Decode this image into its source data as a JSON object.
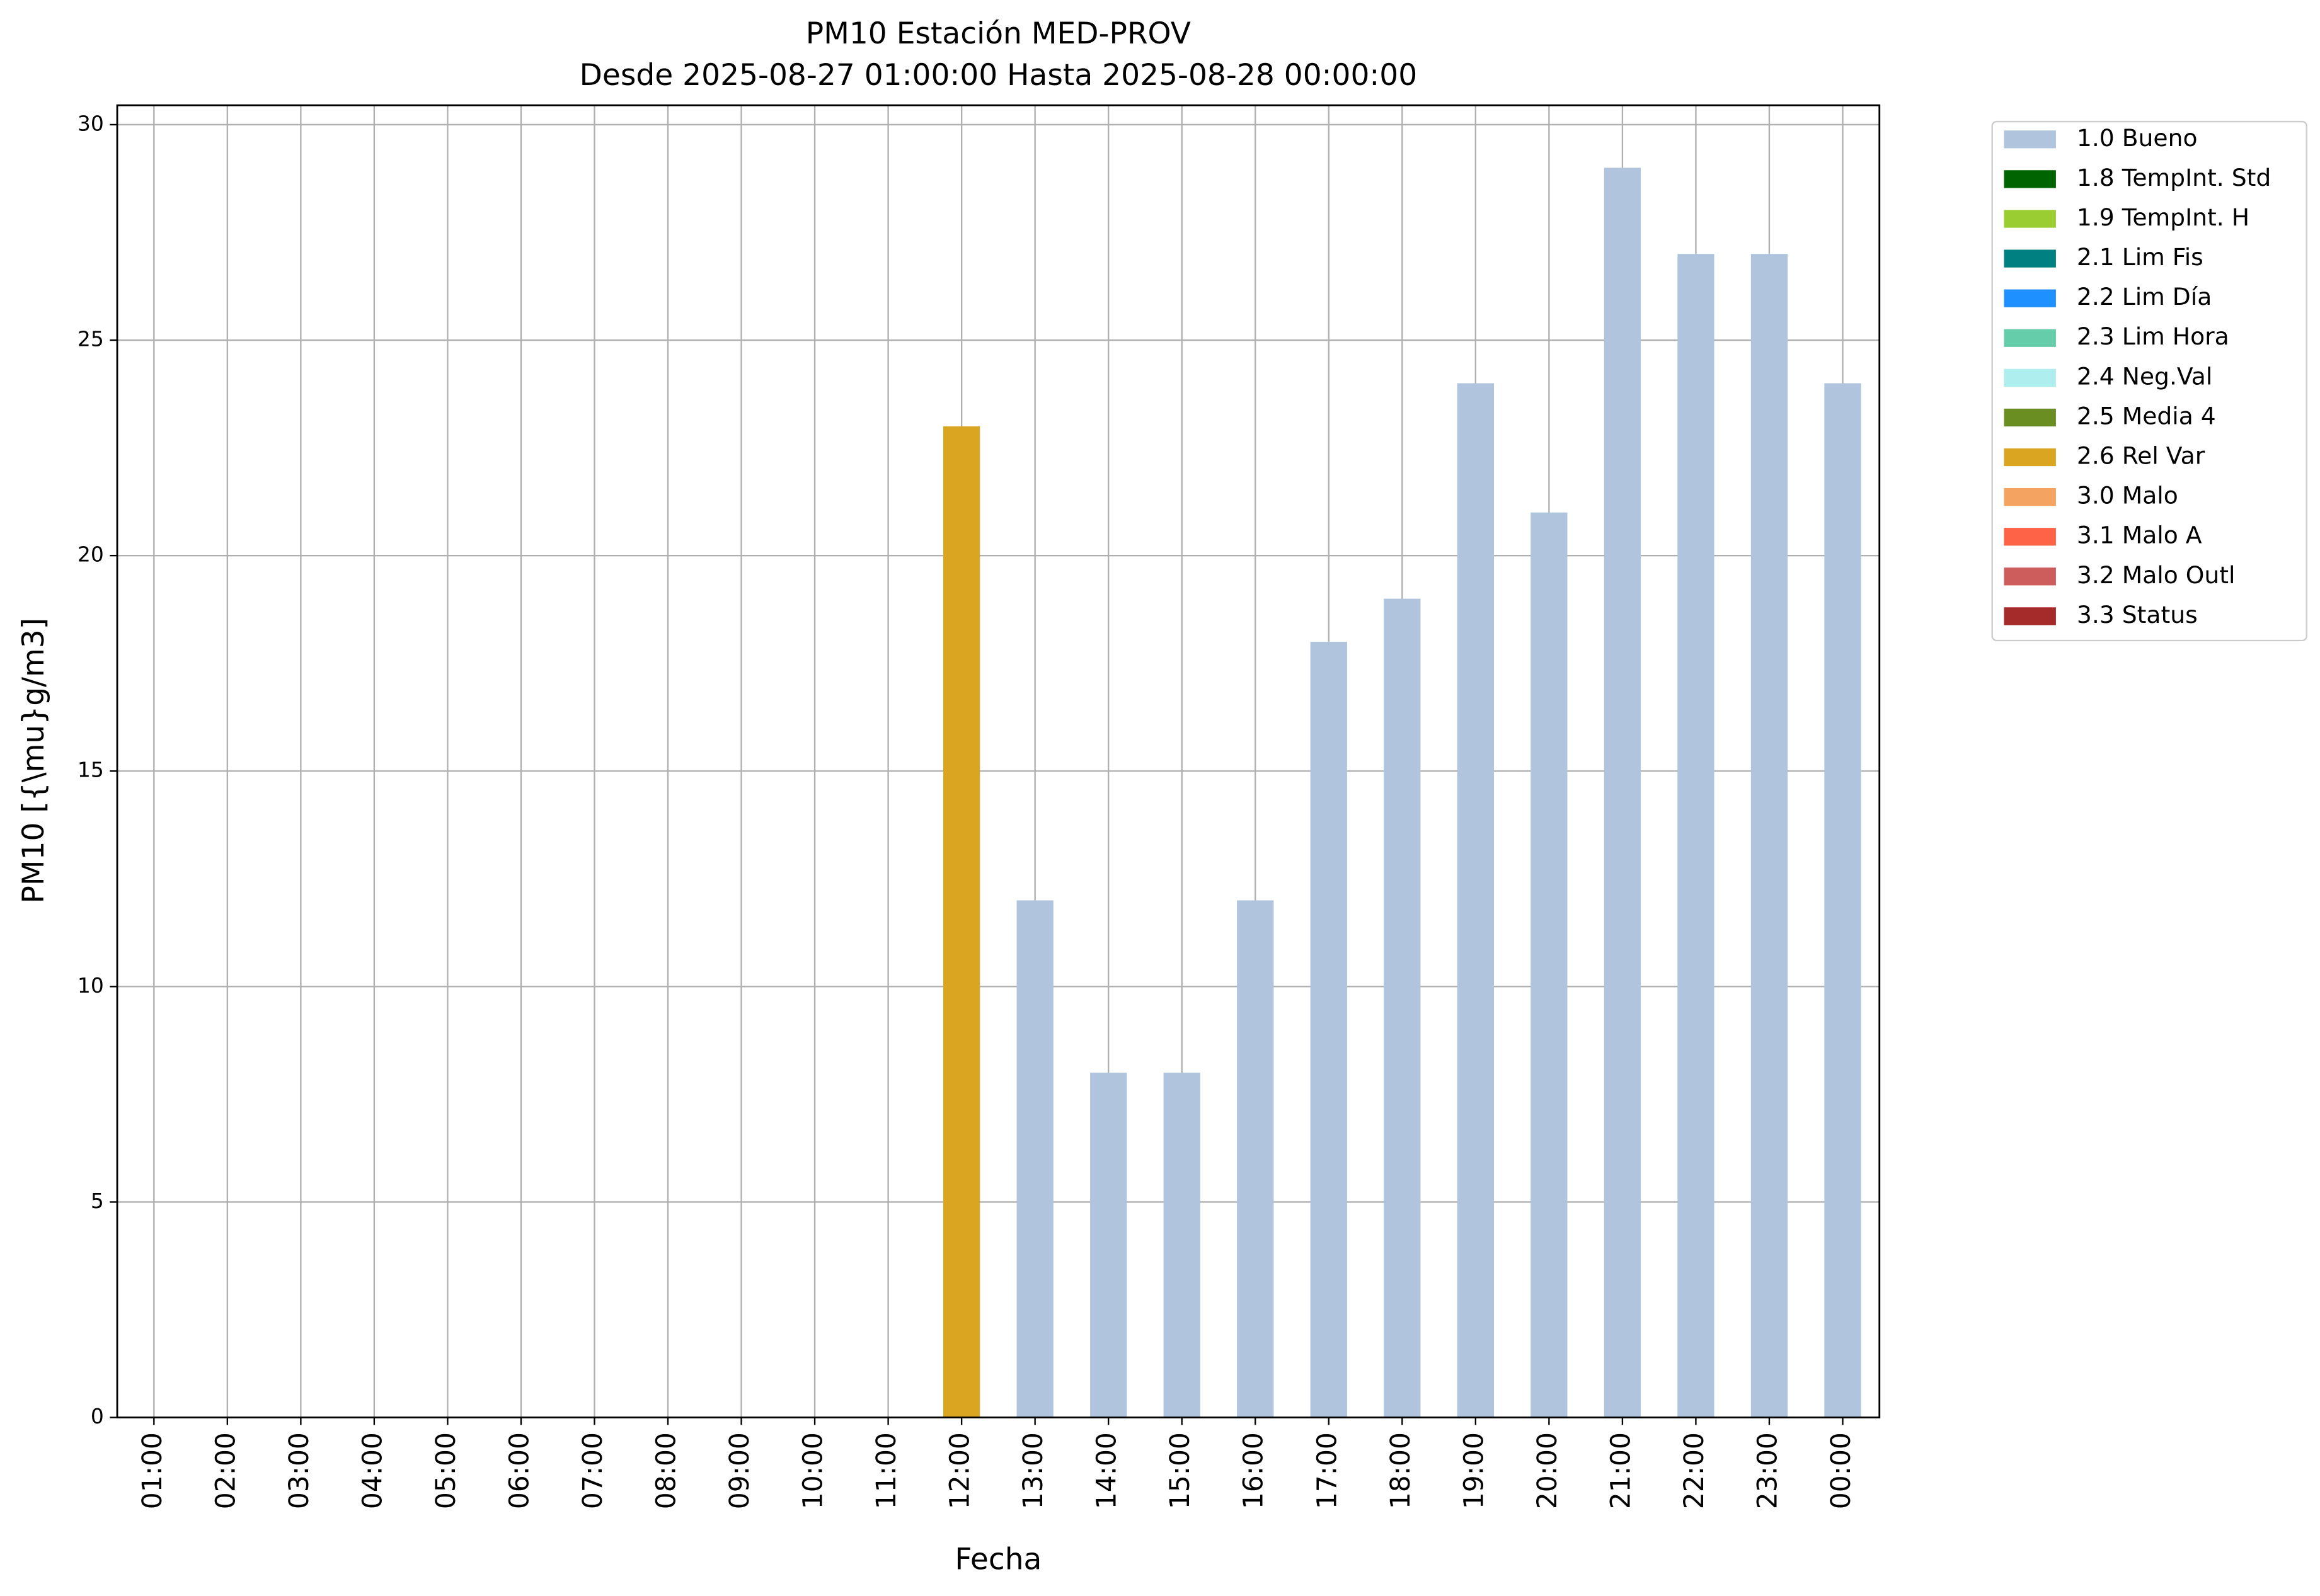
{
  "chart_data": {
    "type": "bar",
    "stacked": true,
    "title": "PM10 Estación MED-PROV",
    "subtitle": "Desde 2025-08-27 01:00:00 Hasta 2025-08-28 00:00:00",
    "x_label": "Fecha",
    "y_label": "PM10 [{\\mu}g/m3]",
    "categories": [
      "01:00",
      "02:00",
      "03:00",
      "04:00",
      "05:00",
      "06:00",
      "07:00",
      "08:00",
      "09:00",
      "10:00",
      "11:00",
      "12:00",
      "13:00",
      "14:00",
      "15:00",
      "16:00",
      "17:00",
      "18:00",
      "19:00",
      "20:00",
      "21:00",
      "22:00",
      "23:00",
      "00:00"
    ],
    "series": [
      {
        "name": "1.0 Bueno",
        "color": "#b0c4de",
        "values": [
          null,
          null,
          null,
          null,
          null,
          null,
          null,
          null,
          null,
          null,
          null,
          null,
          12,
          8,
          8,
          12,
          18,
          19,
          24,
          21,
          29,
          27,
          27,
          24
        ]
      },
      {
        "name": "1.8 TempInt. Std",
        "color": "#006400",
        "values": [
          null,
          null,
          null,
          null,
          null,
          null,
          null,
          null,
          null,
          null,
          null,
          null,
          null,
          null,
          null,
          null,
          null,
          null,
          null,
          null,
          null,
          null,
          null,
          null
        ]
      },
      {
        "name": "1.9 TempInt. H",
        "color": "#9acd32",
        "values": [
          null,
          null,
          null,
          null,
          null,
          null,
          null,
          null,
          null,
          null,
          null,
          null,
          null,
          null,
          null,
          null,
          null,
          null,
          null,
          null,
          null,
          null,
          null,
          null
        ]
      },
      {
        "name": "2.1 Lim Fis",
        "color": "#008080",
        "values": [
          null,
          null,
          null,
          null,
          null,
          null,
          null,
          null,
          null,
          null,
          null,
          null,
          null,
          null,
          null,
          null,
          null,
          null,
          null,
          null,
          null,
          null,
          null,
          null
        ]
      },
      {
        "name": "2.2 Lim Día",
        "color": "#1e90ff",
        "values": [
          null,
          null,
          null,
          null,
          null,
          null,
          null,
          null,
          null,
          null,
          null,
          null,
          null,
          null,
          null,
          null,
          null,
          null,
          null,
          null,
          null,
          null,
          null,
          null
        ]
      },
      {
        "name": "2.3 Lim Hora",
        "color": "#66cdaa",
        "values": [
          null,
          null,
          null,
          null,
          null,
          null,
          null,
          null,
          null,
          null,
          null,
          null,
          null,
          null,
          null,
          null,
          null,
          null,
          null,
          null,
          null,
          null,
          null,
          null
        ]
      },
      {
        "name": "2.4 Neg.Val",
        "color": "#afeeee",
        "values": [
          null,
          null,
          null,
          null,
          null,
          null,
          null,
          null,
          null,
          null,
          null,
          null,
          null,
          null,
          null,
          null,
          null,
          null,
          null,
          null,
          null,
          null,
          null,
          null
        ]
      },
      {
        "name": "2.5 Media 4",
        "color": "#6b8e23",
        "values": [
          null,
          null,
          null,
          null,
          null,
          null,
          null,
          null,
          null,
          null,
          null,
          null,
          null,
          null,
          null,
          null,
          null,
          null,
          null,
          null,
          null,
          null,
          null,
          null
        ]
      },
      {
        "name": "2.6 Rel Var",
        "color": "#daa520",
        "values": [
          null,
          null,
          null,
          null,
          null,
          null,
          null,
          null,
          null,
          null,
          null,
          23,
          null,
          null,
          null,
          null,
          null,
          null,
          null,
          null,
          null,
          null,
          null,
          null
        ]
      },
      {
        "name": "3.0 Malo",
        "color": "#f4a460",
        "values": [
          null,
          null,
          null,
          null,
          null,
          null,
          null,
          null,
          null,
          null,
          null,
          null,
          null,
          null,
          null,
          null,
          null,
          null,
          null,
          null,
          null,
          null,
          null,
          null
        ]
      },
      {
        "name": "3.1 Malo A",
        "color": "#ff6347",
        "values": [
          null,
          null,
          null,
          null,
          null,
          null,
          null,
          null,
          null,
          null,
          null,
          null,
          null,
          null,
          null,
          null,
          null,
          null,
          null,
          null,
          null,
          null,
          null,
          null
        ]
      },
      {
        "name": "3.2 Malo Outl",
        "color": "#cd5c5c",
        "values": [
          null,
          null,
          null,
          null,
          null,
          null,
          null,
          null,
          null,
          null,
          null,
          null,
          null,
          null,
          null,
          null,
          null,
          null,
          null,
          null,
          null,
          null,
          null,
          null
        ]
      },
      {
        "name": "3.3 Status",
        "color": "#a52a2a",
        "values": [
          null,
          null,
          null,
          null,
          null,
          null,
          null,
          null,
          null,
          null,
          null,
          null,
          null,
          null,
          null,
          null,
          null,
          null,
          null,
          null,
          null,
          null,
          null,
          null
        ]
      }
    ],
    "ylim": [
      0,
      30.45
    ],
    "yticks": [
      0,
      5,
      10,
      15,
      20,
      25,
      30
    ],
    "grid": true,
    "legend": "outside-upper-right"
  }
}
